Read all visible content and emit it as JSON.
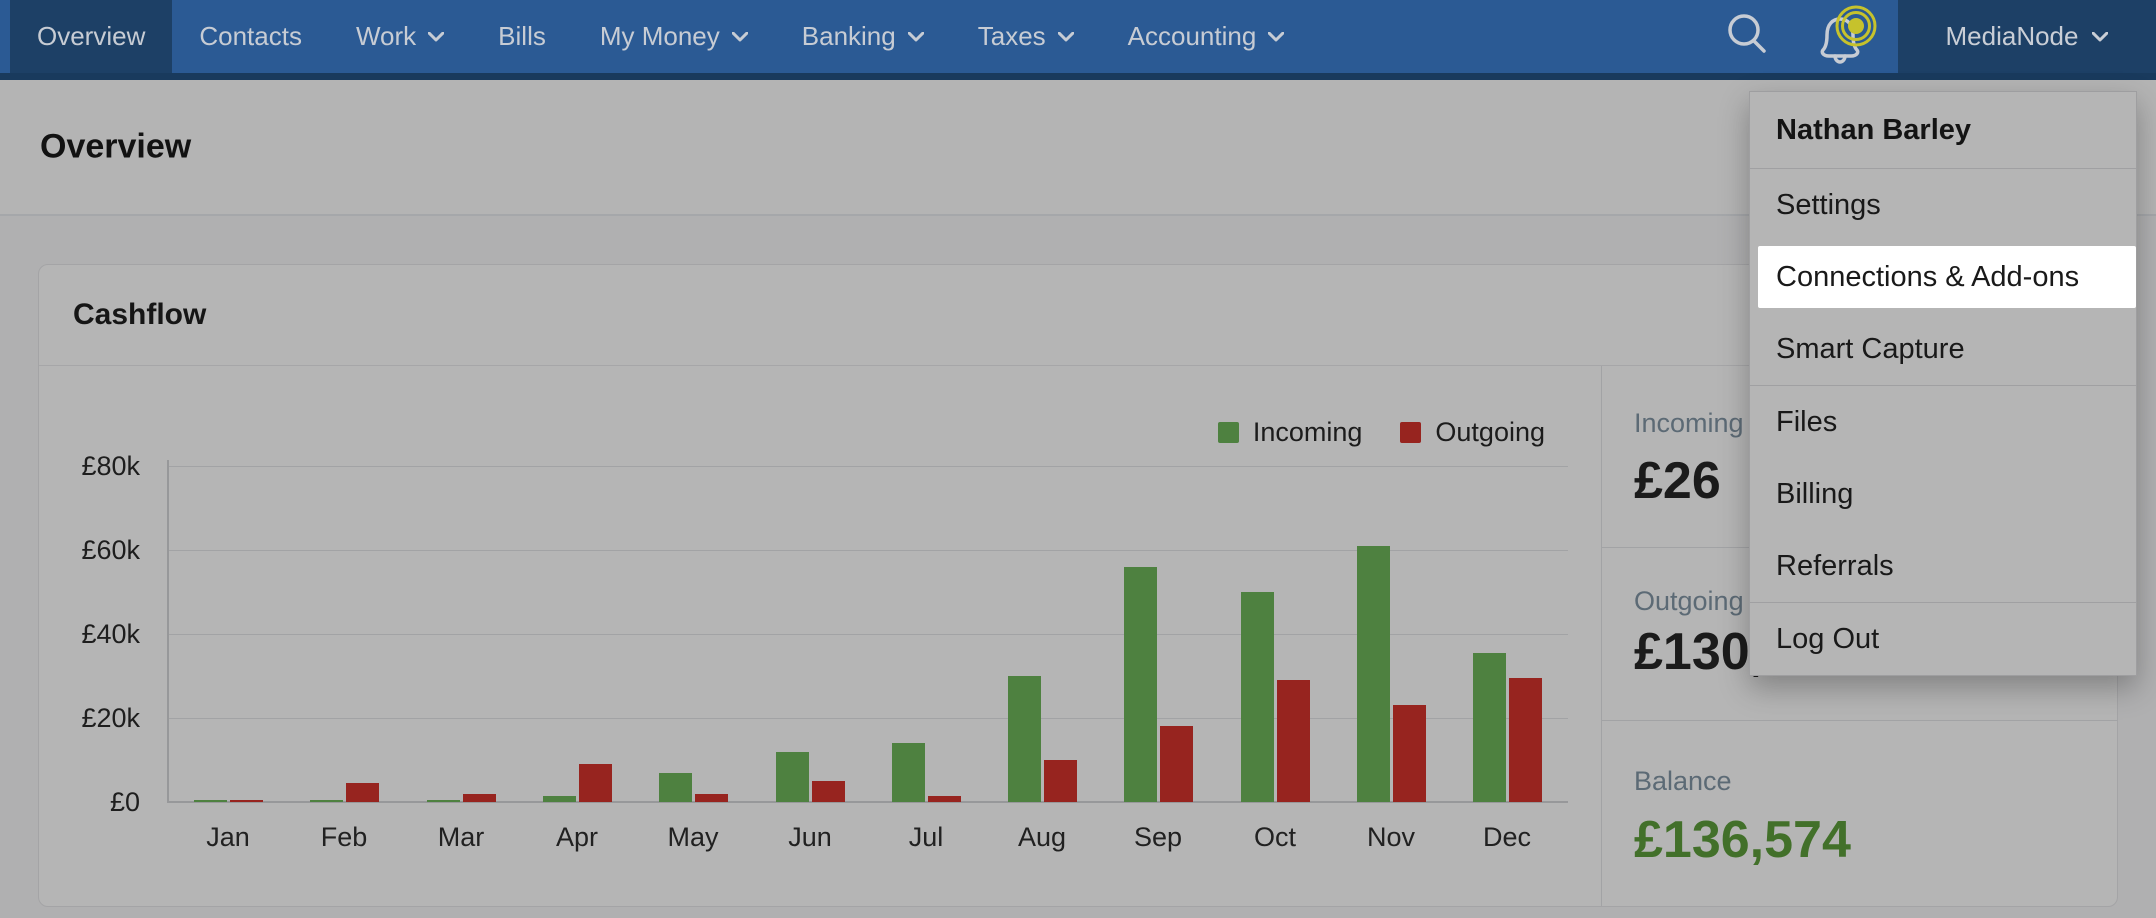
{
  "nav": {
    "items": [
      {
        "label": "Overview",
        "active": true,
        "caret": false
      },
      {
        "label": "Contacts",
        "active": false,
        "caret": false
      },
      {
        "label": "Work",
        "active": false,
        "caret": true
      },
      {
        "label": "Bills",
        "active": false,
        "caret": false
      },
      {
        "label": "My Money",
        "active": false,
        "caret": true
      },
      {
        "label": "Banking",
        "active": false,
        "caret": true
      },
      {
        "label": "Taxes",
        "active": false,
        "caret": true
      },
      {
        "label": "Accounting",
        "active": false,
        "caret": true
      }
    ],
    "account_label": "MediaNode",
    "notification_dot": true
  },
  "header": {
    "title": "Overview"
  },
  "card": {
    "title": "Cashflow"
  },
  "legend": {
    "incoming": "Incoming",
    "outgoing": "Outgoing"
  },
  "user_menu": {
    "name": "Nathan Barley",
    "items": [
      "Settings",
      "Connections & Add-ons",
      "Smart Capture",
      "Files",
      "Billing",
      "Referrals",
      "Log Out"
    ],
    "highlighted_item": "Connections & Add-ons"
  },
  "summary": {
    "incoming_label": "Incoming",
    "incoming_value": "£26",
    "outgoing_label": "Outgoing",
    "outgoing_value": "£130,",
    "balance_label": "Balance",
    "balance_value": "£136,574"
  },
  "chart_data": {
    "type": "bar",
    "title": "Cashflow",
    "categories": [
      "Jan",
      "Feb",
      "Mar",
      "Apr",
      "May",
      "Jun",
      "Jul",
      "Aug",
      "Sep",
      "Oct",
      "Nov",
      "Dec"
    ],
    "series": [
      {
        "name": "Incoming",
        "color": "#4e8140",
        "values": [
          300,
          200,
          300,
          1500,
          7000,
          12000,
          14000,
          30000,
          56000,
          50000,
          61000,
          35500
        ]
      },
      {
        "name": "Outgoing",
        "color": "#97241f",
        "values": [
          400,
          4500,
          2000,
          9000,
          2000,
          5000,
          1500,
          10000,
          18000,
          29000,
          23000,
          29500
        ]
      }
    ],
    "ylabels": [
      "£0",
      "£20k",
      "£40k",
      "£60k",
      "£80k"
    ],
    "ylim": [
      0,
      80000
    ],
    "grid": true,
    "legend_position": "top-right"
  },
  "colors": {
    "nav_blue": "#2b5a94",
    "nav_active_blue": "#1d4066",
    "incoming_green": "#4e8140",
    "outgoing_red": "#97241f",
    "balance_green": "#42702a",
    "notification_yellow": "#c6c22c",
    "highlight_white": "#ffffff"
  }
}
